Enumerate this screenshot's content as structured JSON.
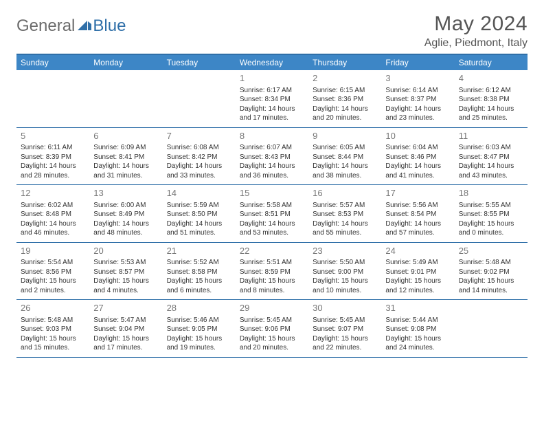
{
  "logo": {
    "part1": "General",
    "part2": "Blue"
  },
  "title": "May 2024",
  "location": "Aglie, Piedmont, Italy",
  "dayNames": [
    "Sunday",
    "Monday",
    "Tuesday",
    "Wednesday",
    "Thursday",
    "Friday",
    "Saturday"
  ],
  "colors": {
    "accent": "#2f6fa8",
    "header_bg": "#3d86c6",
    "text": "#333333",
    "muted": "#777777"
  },
  "weeks": [
    [
      null,
      null,
      null,
      {
        "n": "1",
        "sr": "6:17 AM",
        "ss": "8:34 PM",
        "dl": "14 hours and 17 minutes."
      },
      {
        "n": "2",
        "sr": "6:15 AM",
        "ss": "8:36 PM",
        "dl": "14 hours and 20 minutes."
      },
      {
        "n": "3",
        "sr": "6:14 AM",
        "ss": "8:37 PM",
        "dl": "14 hours and 23 minutes."
      },
      {
        "n": "4",
        "sr": "6:12 AM",
        "ss": "8:38 PM",
        "dl": "14 hours and 25 minutes."
      }
    ],
    [
      {
        "n": "5",
        "sr": "6:11 AM",
        "ss": "8:39 PM",
        "dl": "14 hours and 28 minutes."
      },
      {
        "n": "6",
        "sr": "6:09 AM",
        "ss": "8:41 PM",
        "dl": "14 hours and 31 minutes."
      },
      {
        "n": "7",
        "sr": "6:08 AM",
        "ss": "8:42 PM",
        "dl": "14 hours and 33 minutes."
      },
      {
        "n": "8",
        "sr": "6:07 AM",
        "ss": "8:43 PM",
        "dl": "14 hours and 36 minutes."
      },
      {
        "n": "9",
        "sr": "6:05 AM",
        "ss": "8:44 PM",
        "dl": "14 hours and 38 minutes."
      },
      {
        "n": "10",
        "sr": "6:04 AM",
        "ss": "8:46 PM",
        "dl": "14 hours and 41 minutes."
      },
      {
        "n": "11",
        "sr": "6:03 AM",
        "ss": "8:47 PM",
        "dl": "14 hours and 43 minutes."
      }
    ],
    [
      {
        "n": "12",
        "sr": "6:02 AM",
        "ss": "8:48 PM",
        "dl": "14 hours and 46 minutes."
      },
      {
        "n": "13",
        "sr": "6:00 AM",
        "ss": "8:49 PM",
        "dl": "14 hours and 48 minutes."
      },
      {
        "n": "14",
        "sr": "5:59 AM",
        "ss": "8:50 PM",
        "dl": "14 hours and 51 minutes."
      },
      {
        "n": "15",
        "sr": "5:58 AM",
        "ss": "8:51 PM",
        "dl": "14 hours and 53 minutes."
      },
      {
        "n": "16",
        "sr": "5:57 AM",
        "ss": "8:53 PM",
        "dl": "14 hours and 55 minutes."
      },
      {
        "n": "17",
        "sr": "5:56 AM",
        "ss": "8:54 PM",
        "dl": "14 hours and 57 minutes."
      },
      {
        "n": "18",
        "sr": "5:55 AM",
        "ss": "8:55 PM",
        "dl": "15 hours and 0 minutes."
      }
    ],
    [
      {
        "n": "19",
        "sr": "5:54 AM",
        "ss": "8:56 PM",
        "dl": "15 hours and 2 minutes."
      },
      {
        "n": "20",
        "sr": "5:53 AM",
        "ss": "8:57 PM",
        "dl": "15 hours and 4 minutes."
      },
      {
        "n": "21",
        "sr": "5:52 AM",
        "ss": "8:58 PM",
        "dl": "15 hours and 6 minutes."
      },
      {
        "n": "22",
        "sr": "5:51 AM",
        "ss": "8:59 PM",
        "dl": "15 hours and 8 minutes."
      },
      {
        "n": "23",
        "sr": "5:50 AM",
        "ss": "9:00 PM",
        "dl": "15 hours and 10 minutes."
      },
      {
        "n": "24",
        "sr": "5:49 AM",
        "ss": "9:01 PM",
        "dl": "15 hours and 12 minutes."
      },
      {
        "n": "25",
        "sr": "5:48 AM",
        "ss": "9:02 PM",
        "dl": "15 hours and 14 minutes."
      }
    ],
    [
      {
        "n": "26",
        "sr": "5:48 AM",
        "ss": "9:03 PM",
        "dl": "15 hours and 15 minutes."
      },
      {
        "n": "27",
        "sr": "5:47 AM",
        "ss": "9:04 PM",
        "dl": "15 hours and 17 minutes."
      },
      {
        "n": "28",
        "sr": "5:46 AM",
        "ss": "9:05 PM",
        "dl": "15 hours and 19 minutes."
      },
      {
        "n": "29",
        "sr": "5:45 AM",
        "ss": "9:06 PM",
        "dl": "15 hours and 20 minutes."
      },
      {
        "n": "30",
        "sr": "5:45 AM",
        "ss": "9:07 PM",
        "dl": "15 hours and 22 minutes."
      },
      {
        "n": "31",
        "sr": "5:44 AM",
        "ss": "9:08 PM",
        "dl": "15 hours and 24 minutes."
      },
      null
    ]
  ],
  "labels": {
    "sunrise": "Sunrise:",
    "sunset": "Sunset:",
    "daylight": "Daylight:"
  }
}
